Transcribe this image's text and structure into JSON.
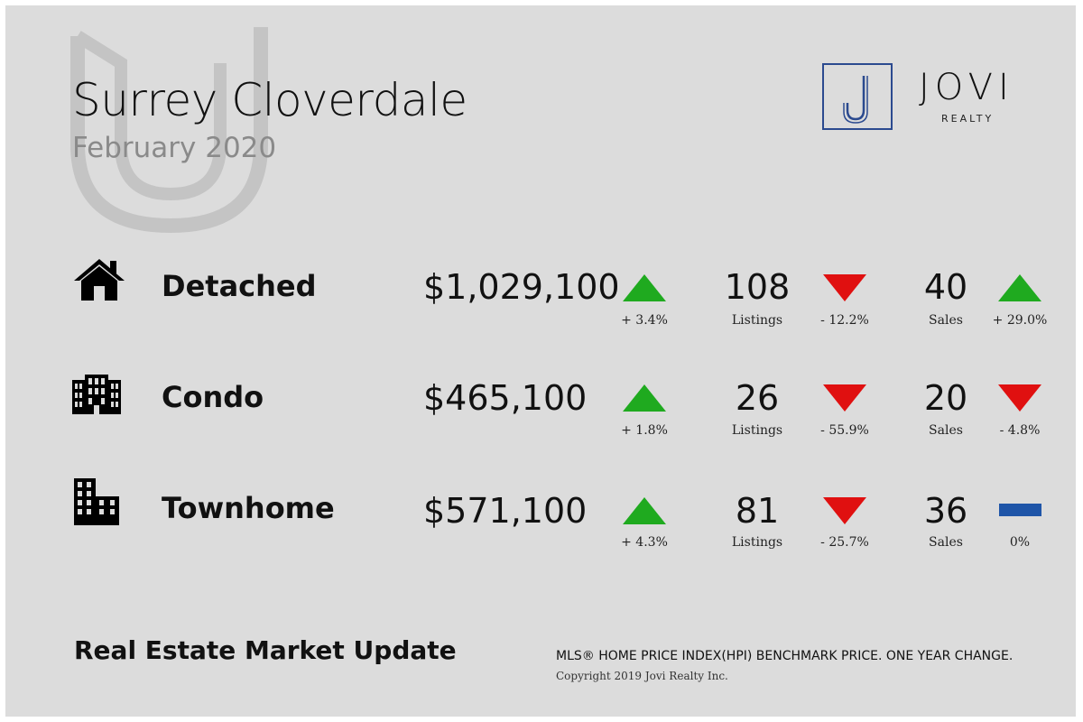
{
  "header": {
    "title": "Surrey Cloverdale",
    "subtitle": "February 2020"
  },
  "brand": {
    "name": "JOVI",
    "sub": "REALTY",
    "logo_letter": "J",
    "accent_color": "#2b4a8f"
  },
  "colors": {
    "up": "#1faa1f",
    "down": "#e01010",
    "flat": "#1f55a8"
  },
  "rows": [
    {
      "type": "Detached",
      "icon": "house-icon",
      "price": "$1,029,100",
      "price_change": "+ 3.4%",
      "price_trend": "up",
      "listings": "108",
      "listings_label": "Listings",
      "listings_change": "- 12.2%",
      "listings_trend": "down",
      "sales": "40",
      "sales_label": "Sales",
      "sales_change": "+ 29.0%",
      "sales_trend": "up"
    },
    {
      "type": "Condo",
      "icon": "condo-building-icon",
      "price": "$465,100",
      "price_change": "+ 1.8%",
      "price_trend": "up",
      "listings": "26",
      "listings_label": "Listings",
      "listings_change": "- 55.9%",
      "listings_trend": "down",
      "sales": "20",
      "sales_label": "Sales",
      "sales_change": "- 4.8%",
      "sales_trend": "down"
    },
    {
      "type": "Townhome",
      "icon": "townhome-building-icon",
      "price": "$571,100",
      "price_change": "+ 4.3%",
      "price_trend": "up",
      "listings": "81",
      "listings_label": "Listings",
      "listings_change": "- 25.7%",
      "listings_trend": "down",
      "sales": "36",
      "sales_label": "Sales",
      "sales_change": "0%",
      "sales_trend": "flat"
    }
  ],
  "footer": {
    "heading": "Real Estate Market Update",
    "note": "MLS® HOME PRICE INDEX(HPI) BENCHMARK PRICE. ONE YEAR CHANGE.",
    "copyright": "Copyright 2019 Jovi Realty Inc."
  }
}
